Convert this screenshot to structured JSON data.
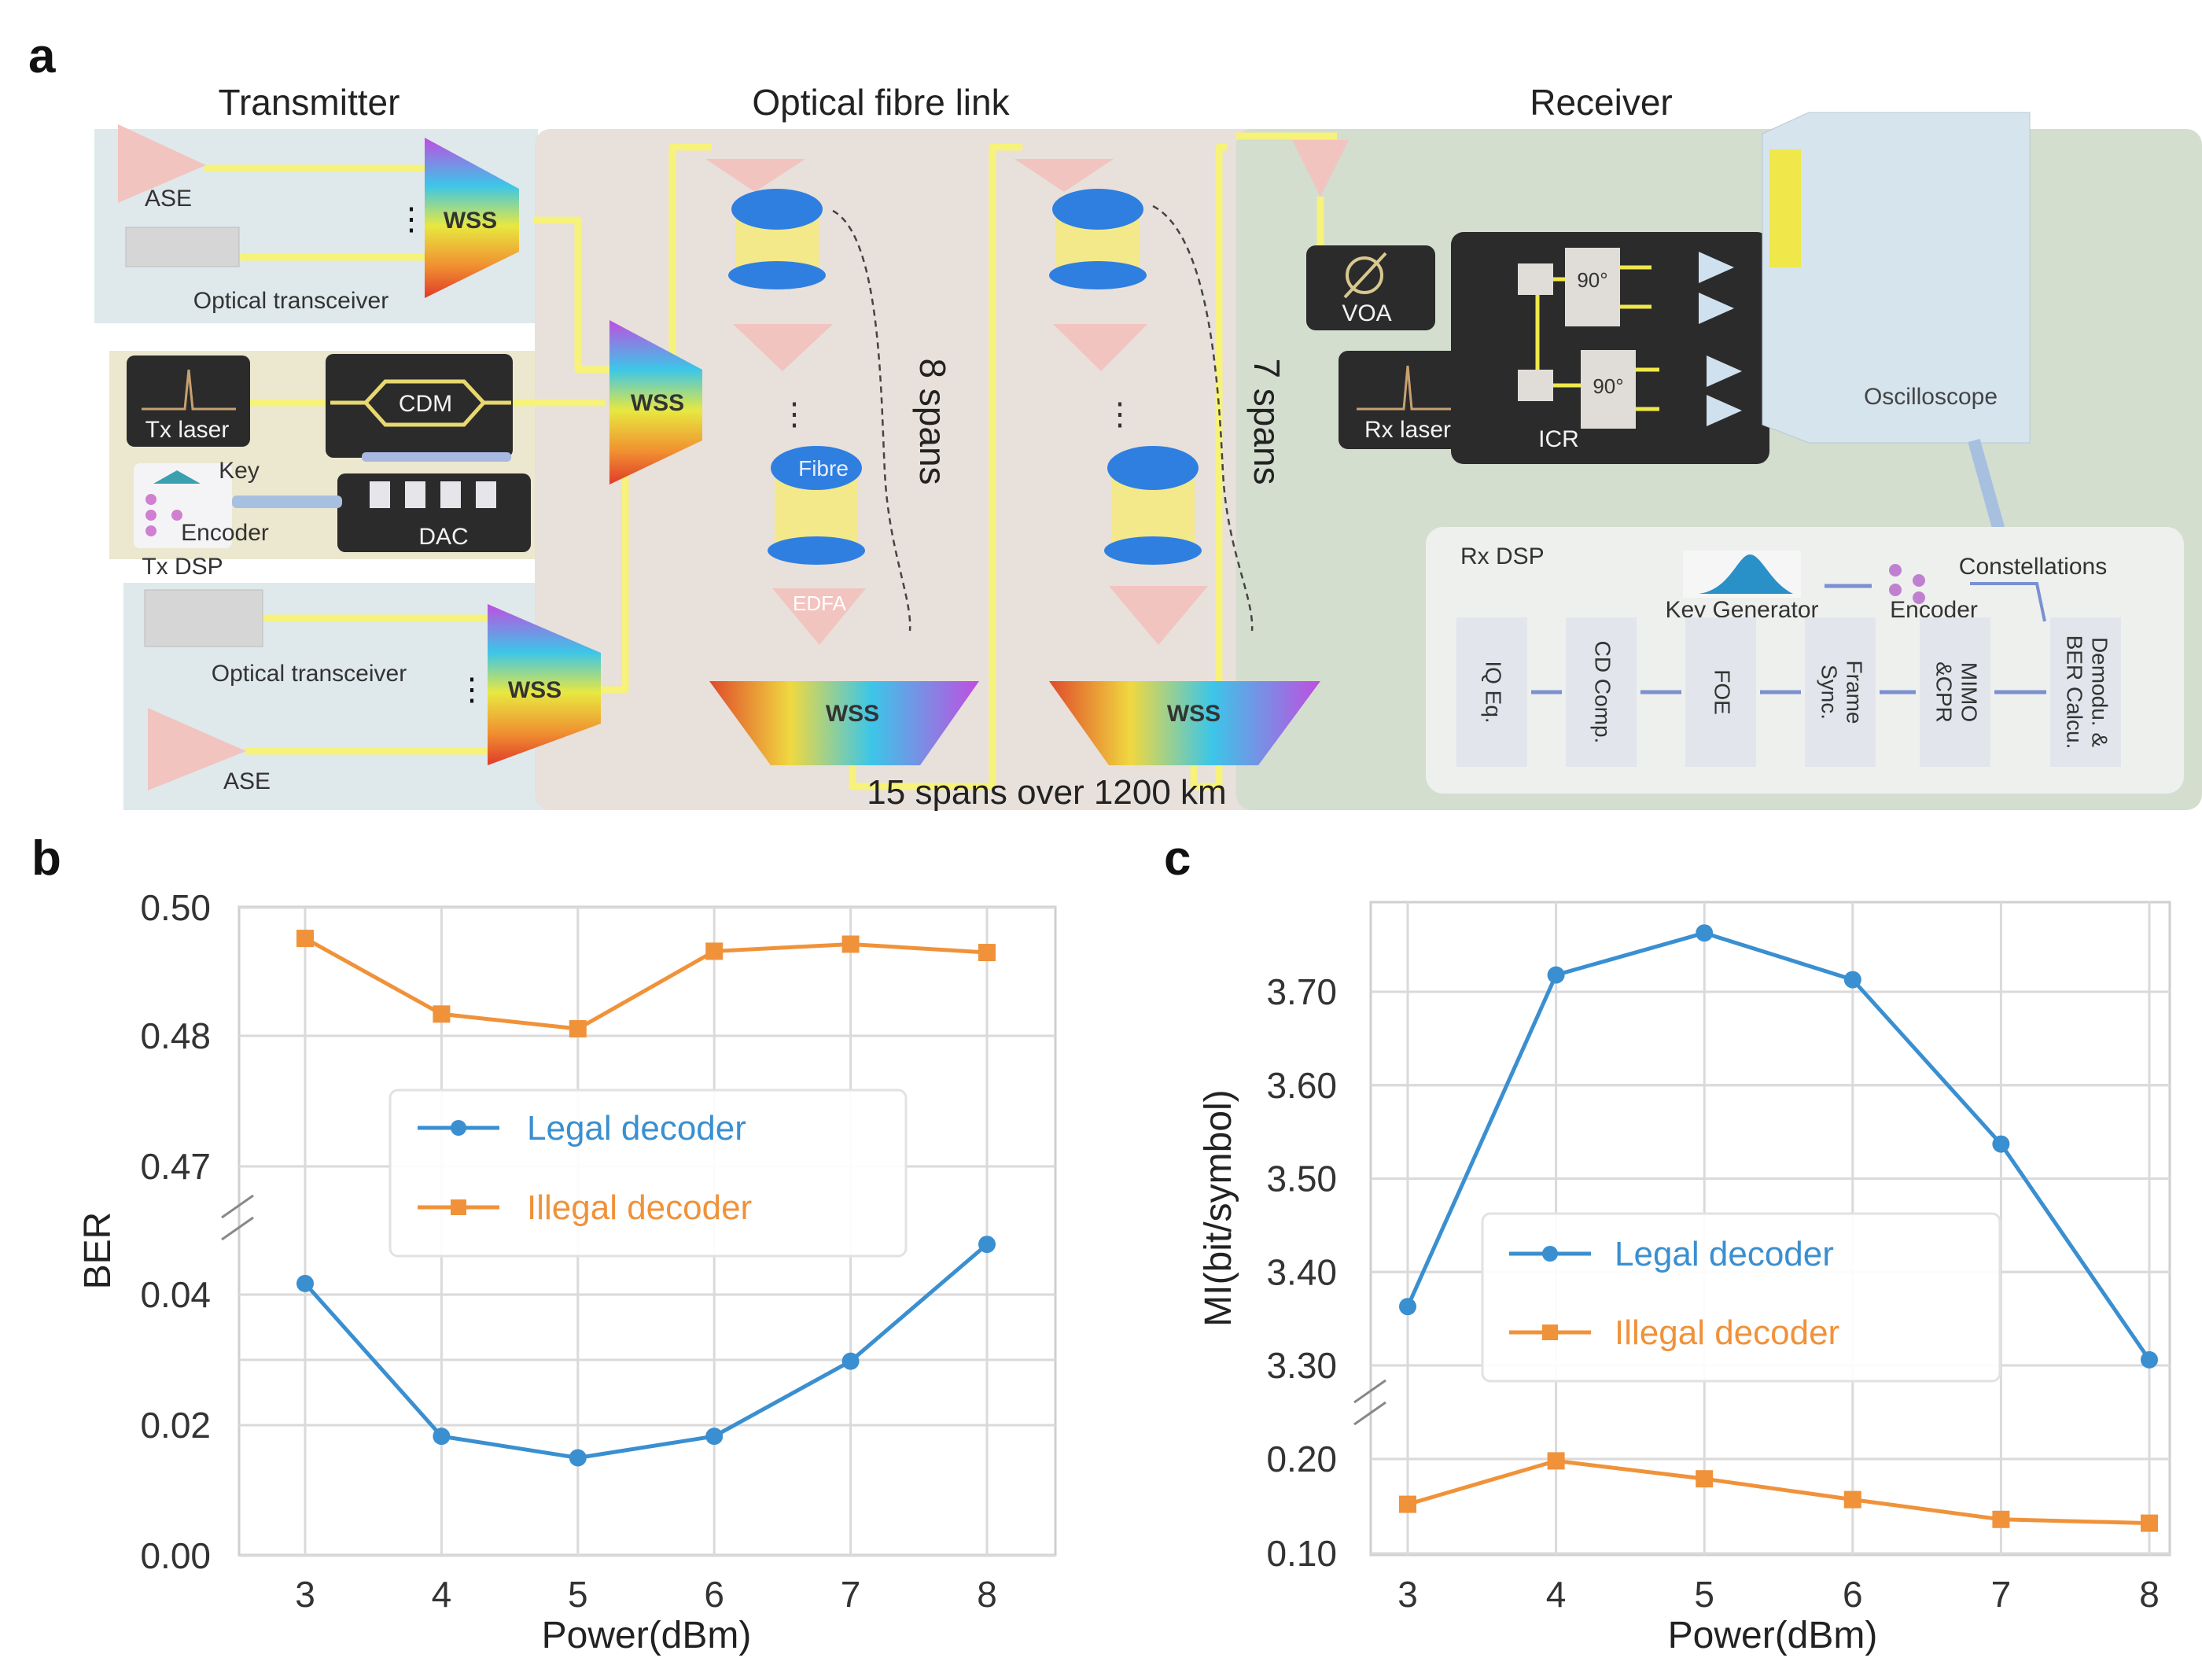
{
  "panel_labels": {
    "a": "a",
    "b": "b",
    "c": "c"
  },
  "panel_a": {
    "sections": {
      "transmitter": "Transmitter",
      "link": "Optical fibre link",
      "receiver": "Receiver"
    },
    "transmitter": {
      "ase_top": "ASE",
      "transceiver_top": "Optical transceiver",
      "wss_top": "WSS",
      "tx_laser": "Tx laser",
      "cdm": "CDM",
      "dac": "DAC",
      "key": "Key",
      "encoder": "Encoder",
      "tx_dsp": "Tx DSP",
      "transceiver_bottom": "Optical transceiver",
      "ase_bottom": "ASE",
      "wss_bottom": "WSS"
    },
    "link": {
      "wss_mux": "WSS",
      "fibre": "Fibre",
      "edfa": "EDFA",
      "spans_a": "8 spans",
      "spans_b": "7 spans",
      "wss_a": "WSS",
      "wss_b": "WSS",
      "summary": "15 spans over 1200 km"
    },
    "receiver": {
      "voa": "VOA",
      "rx_laser": "Rx laser",
      "icr": "ICR",
      "hybrid_1": "90°",
      "hybrid_2": "90°",
      "oscilloscope": "Oscilloscope",
      "rx_dsp": "Rx DSP",
      "key_generator": "Key Generator",
      "encoder": "Encoder",
      "constellations": "Constellations",
      "dsp_blocks": [
        [
          "IQ Eq."
        ],
        [
          "CD Comp."
        ],
        [
          "FOE"
        ],
        [
          "Frame",
          "Sync."
        ],
        [
          "MIMO",
          "&CPR"
        ],
        [
          "Demodu. &",
          "BER Calcu."
        ]
      ]
    },
    "colors": {
      "wire": "#f6f27a",
      "amp": "#f2c4c0",
      "spool_blue": "#2f7fe0",
      "spool_yellow": "#f3e98a"
    }
  },
  "chart_data": [
    {
      "panel": "b",
      "type": "line",
      "title": "",
      "xlabel": "Power(dBm)",
      "ylabel": "BER",
      "x": [
        3,
        4,
        5,
        6,
        7,
        8
      ],
      "x_tick_labels": [
        "3",
        "4",
        "5",
        "6",
        "7",
        "8"
      ],
      "broken_y_axis": true,
      "y_ticks_upper": [
        "0.47",
        "0.48",
        "0.50"
      ],
      "y_ticks_lower": [
        "0.00",
        "0.02",
        "0.04"
      ],
      "ylim_upper": [
        0.465,
        0.5
      ],
      "ylim_lower": [
        0.0,
        0.05
      ],
      "grid": true,
      "legend_position": "center",
      "series": [
        {
          "name": "Legal decoder",
          "marker": "circle",
          "color": "#3a8fd0",
          "values": [
            0.0417,
            0.0183,
            0.015,
            0.0183,
            0.0298,
            0.0477
          ]
        },
        {
          "name": "Illegal decoder",
          "marker": "square",
          "color": "#f0923a",
          "values": [
            0.4952,
            0.4834,
            0.4811,
            0.4932,
            0.4943,
            0.493
          ]
        }
      ]
    },
    {
      "panel": "c",
      "type": "line",
      "title": "",
      "xlabel": "Power(dBm)",
      "ylabel": "MI(bit/symbol)",
      "x": [
        3,
        4,
        5,
        6,
        7,
        8
      ],
      "x_tick_labels": [
        "3",
        "4",
        "5",
        "6",
        "7",
        "8"
      ],
      "broken_y_axis": true,
      "y_ticks_upper": [
        "3.30",
        "3.40",
        "3.50",
        "3.60",
        "3.70"
      ],
      "y_ticks_lower": [
        "0.10",
        "0.20"
      ],
      "ylim_upper": [
        3.27,
        3.8
      ],
      "ylim_lower": [
        0.1,
        0.24
      ],
      "grid": true,
      "legend_position": "center",
      "series": [
        {
          "name": "Legal decoder",
          "marker": "circle",
          "color": "#3a8fd0",
          "values": [
            3.363,
            3.718,
            3.763,
            3.713,
            3.537,
            3.306
          ]
        },
        {
          "name": "Illegal decoder",
          "marker": "square",
          "color": "#f0923a",
          "values": [
            0.152,
            0.198,
            0.179,
            0.157,
            0.136,
            0.132
          ]
        }
      ]
    }
  ]
}
